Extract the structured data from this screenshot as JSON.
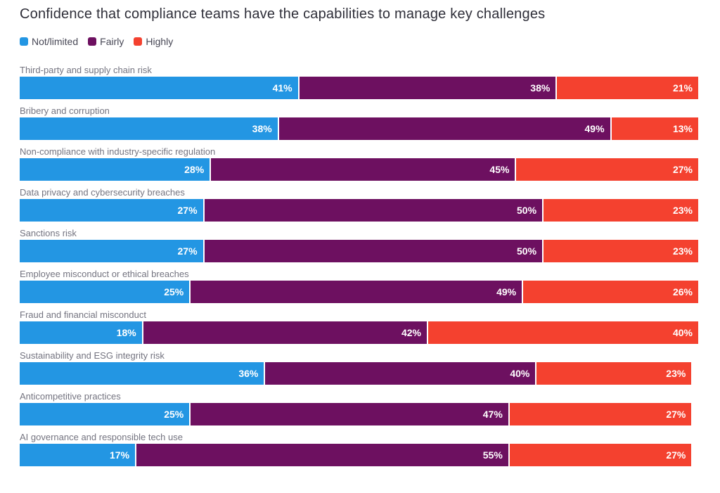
{
  "chart_data": {
    "type": "bar",
    "orientation": "horizontal",
    "stacked": true,
    "title": "Confidence that compliance teams have the capabilities to manage key challenges",
    "legend_position": "top-left",
    "grid": false,
    "xlim": [
      0,
      100
    ],
    "value_suffix": "%",
    "categories": [
      "Third-party and supply chain risk",
      "Bribery and corruption",
      "Non-compliance with industry-specific regulation",
      "Data privacy and cybersecurity breaches",
      "Sanctions risk",
      "Employee misconduct or ethical breaches",
      "Fraud and financial misconduct",
      "Sustainability and ESG integrity risk",
      "Anticompetitive practices",
      "AI governance and responsible tech use"
    ],
    "series": [
      {
        "name": "Not/limited",
        "color": "#2396E3",
        "values": [
          41,
          38,
          28,
          27,
          27,
          25,
          18,
          36,
          25,
          17
        ]
      },
      {
        "name": "Fairly",
        "color": "#6D1060",
        "values": [
          38,
          49,
          45,
          50,
          50,
          49,
          42,
          40,
          47,
          55
        ]
      },
      {
        "name": "Highly",
        "color": "#F4412F",
        "values": [
          21,
          13,
          27,
          23,
          23,
          26,
          40,
          23,
          27,
          27
        ]
      }
    ]
  },
  "colors": {
    "title_text": "#2e2e38",
    "label_text": "#747480",
    "legend_text": "#474755",
    "value_text": "#ffffff",
    "background": "#ffffff"
  }
}
